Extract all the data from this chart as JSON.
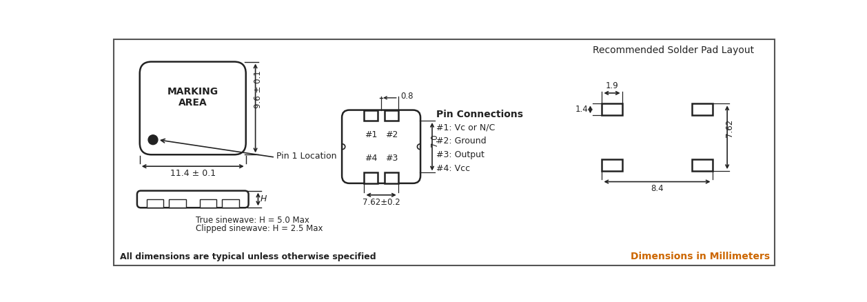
{
  "bg_color": "#ffffff",
  "border_color": "#333333",
  "line_color": "#222222",
  "orange_color": "#cc6600",
  "dark_color": "#222222",
  "title": "Recommended Solder Pad Layout",
  "bottom_left_text": "All dimensions are typical unless otherwise specified",
  "bottom_right_text": "Dimensions in Millimeters",
  "pin_connections_title": "Pin Connections",
  "pin_connections": [
    "#1: Vc or N/C",
    "#2: Ground",
    "#3: Output",
    "#4: Vcc"
  ],
  "true_sinewave": "True sinewave: H = 5.0 Max",
  "clipped_sinewave": "Clipped sinewave: H = 2.5 Max",
  "marking_area": "MARKING\nAREA",
  "dim_96": "9.6 ± 0.1",
  "dim_114": "11.4 ± 0.1",
  "dim_08": "0.8",
  "dim_70": "7.0",
  "dim_762": "7.62±0.2",
  "dim_H": "H",
  "dim_19": "1.9",
  "dim_14": "1.4",
  "dim_762b": "7.62",
  "dim_84": "8.4",
  "pin1_location": "Pin 1 Location"
}
